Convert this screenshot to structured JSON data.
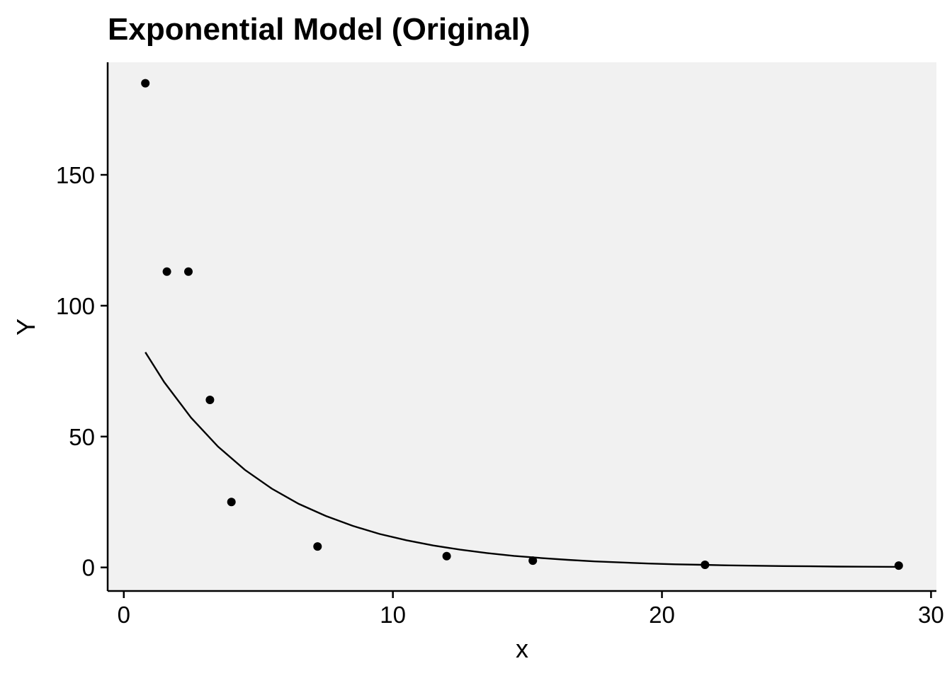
{
  "chart_data": {
    "type": "scatter",
    "title": "Exponential Model (Original)",
    "xlabel": "x",
    "ylabel": "Y",
    "xlim": [
      -0.6,
      30.2
    ],
    "ylim": [
      -9,
      193
    ],
    "x_ticks": [
      0,
      10,
      20,
      30
    ],
    "y_ticks": [
      0,
      50,
      100,
      150
    ],
    "grid": false,
    "background": "#f1f1f1",
    "point_color": "#000000",
    "line_color": "#000000",
    "points": [
      {
        "x": 0.8,
        "y": 185
      },
      {
        "x": 1.6,
        "y": 113
      },
      {
        "x": 2.4,
        "y": 113
      },
      {
        "x": 3.2,
        "y": 64
      },
      {
        "x": 4.0,
        "y": 25
      },
      {
        "x": 7.2,
        "y": 8
      },
      {
        "x": 12.0,
        "y": 4.3
      },
      {
        "x": 15.2,
        "y": 2.6
      },
      {
        "x": 21.6,
        "y": 1.0
      },
      {
        "x": 28.8,
        "y": 0.7
      }
    ],
    "fit_curve": {
      "x": [
        0.8,
        1.5,
        2.5,
        3.5,
        4.5,
        5.5,
        6.5,
        7.5,
        8.5,
        9.5,
        10.5,
        11.5,
        12.5,
        13.5,
        14.5,
        15.5,
        16.5,
        17.5,
        18.5,
        19.5,
        20.5,
        21.5,
        22.5,
        23.5,
        24.5,
        25.5,
        26.5,
        27.5,
        28.8
      ],
      "y": [
        82.2,
        70.8,
        57.2,
        46.2,
        37.3,
        30.1,
        24.3,
        19.7,
        15.9,
        12.8,
        10.4,
        8.4,
        6.8,
        5.5,
        4.4,
        3.6,
        2.9,
        2.3,
        1.9,
        1.5,
        1.2,
        1.0,
        0.8,
        0.65,
        0.53,
        0.43,
        0.34,
        0.28,
        0.21
      ]
    }
  }
}
